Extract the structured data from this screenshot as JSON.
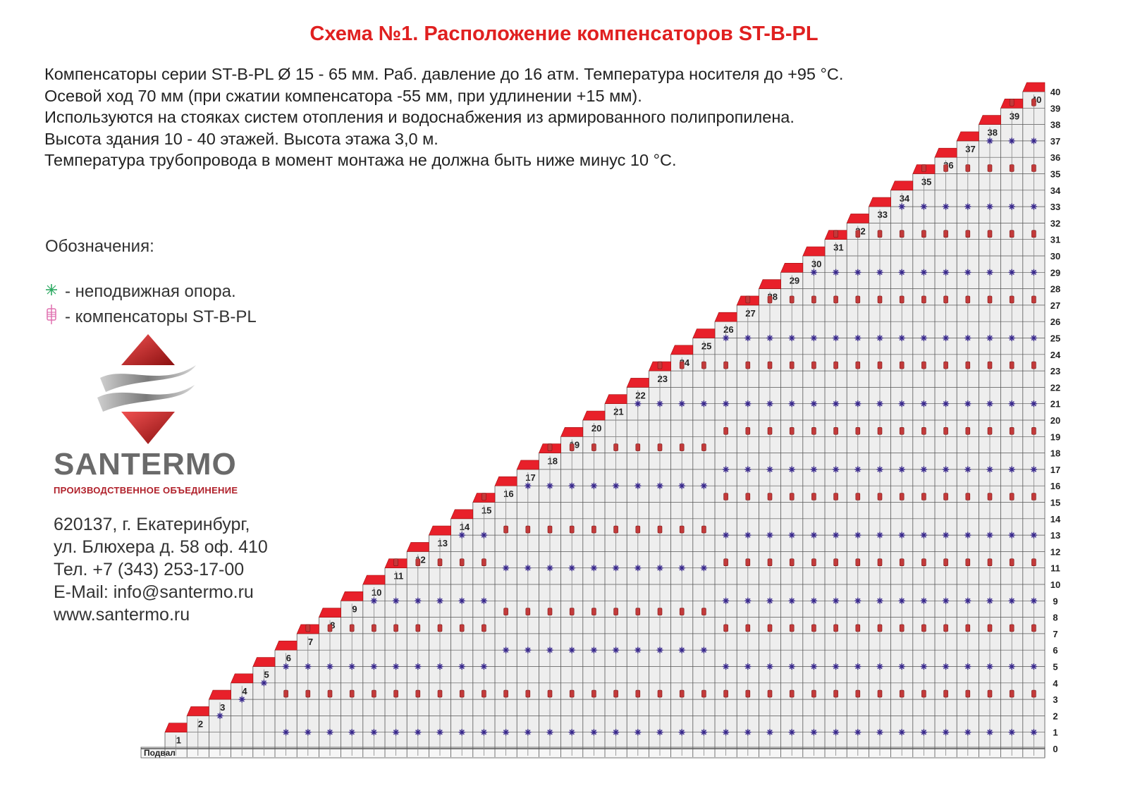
{
  "title": "Схема №1. Расположение компенсаторов ST-B-PL",
  "description": [
    "Компенсаторы серии ST-B-PL Ø 15 - 65 мм. Раб. давление до 16 атм. Температура носителя до +95 °C.",
    "Осевой ход 70 мм (при сжатии компенсатора -55 мм, при удлинении +15 мм).",
    "Используются на стояках систем отопления и водоснабжения из армированного полипропилена.",
    "Высота здания 10 - 40 этажей. Высота этажа 3,0 м.",
    "Температура трубопровода в момент монтажа не должна быть ниже минус 10 °C."
  ],
  "legend": {
    "title": "Обозначения:",
    "support_label": "- неподвижная опора.",
    "support_icon": "fixed-support-icon",
    "compensator_label": "- компенсаторы ST-B-PL",
    "compensator_icon": "compensator-icon"
  },
  "brand": {
    "name": "SANTERMO",
    "subtitle": "ПРОИЗВОДСТВЕННОЕ ОБЪЕДИНЕНИЕ"
  },
  "contacts": [
    "620137, г. Екатеринбург,",
    "ул. Блюхера д. 58 оф. 410",
    "Тел. +7 (343) 253-17-00",
    "E-Mail: info@santermo.ru",
    "www.santermo.ru"
  ],
  "diagram": {
    "basement_label": "Подвал",
    "floors": 40,
    "floor_labels": [
      "0",
      "1",
      "2",
      "3",
      "4",
      "5",
      "6",
      "7",
      "8",
      "9",
      "10",
      "11",
      "12",
      "13",
      "14",
      "15",
      "16",
      "17",
      "18",
      "19",
      "20",
      "21",
      "22",
      "23",
      "24",
      "25",
      "26",
      "27",
      "28",
      "29",
      "30",
      "31",
      "32",
      "33",
      "34",
      "35",
      "36",
      "37",
      "38",
      "39",
      "40"
    ],
    "building_labels": [
      "1",
      "2",
      "3",
      "4",
      "5",
      "6",
      "7",
      "8",
      "9",
      "10",
      "11",
      "12",
      "13",
      "14",
      "15",
      "16",
      "17",
      "18",
      "19",
      "20",
      "21",
      "22",
      "23",
      "24",
      "25",
      "26",
      "27",
      "28",
      "29",
      "30",
      "31",
      "32",
      "33",
      "34",
      "35",
      "36",
      "37",
      "38",
      "39",
      "40"
    ]
  },
  "colors": {
    "title": "#e02020",
    "roof": "#e8202a",
    "support": "#3a2a8c",
    "compensator": "#c23a3a",
    "grid": "#555555",
    "building_fill": "#eeeeee",
    "legend_support": "#2aa860",
    "legend_compensator": "#e070b0"
  }
}
